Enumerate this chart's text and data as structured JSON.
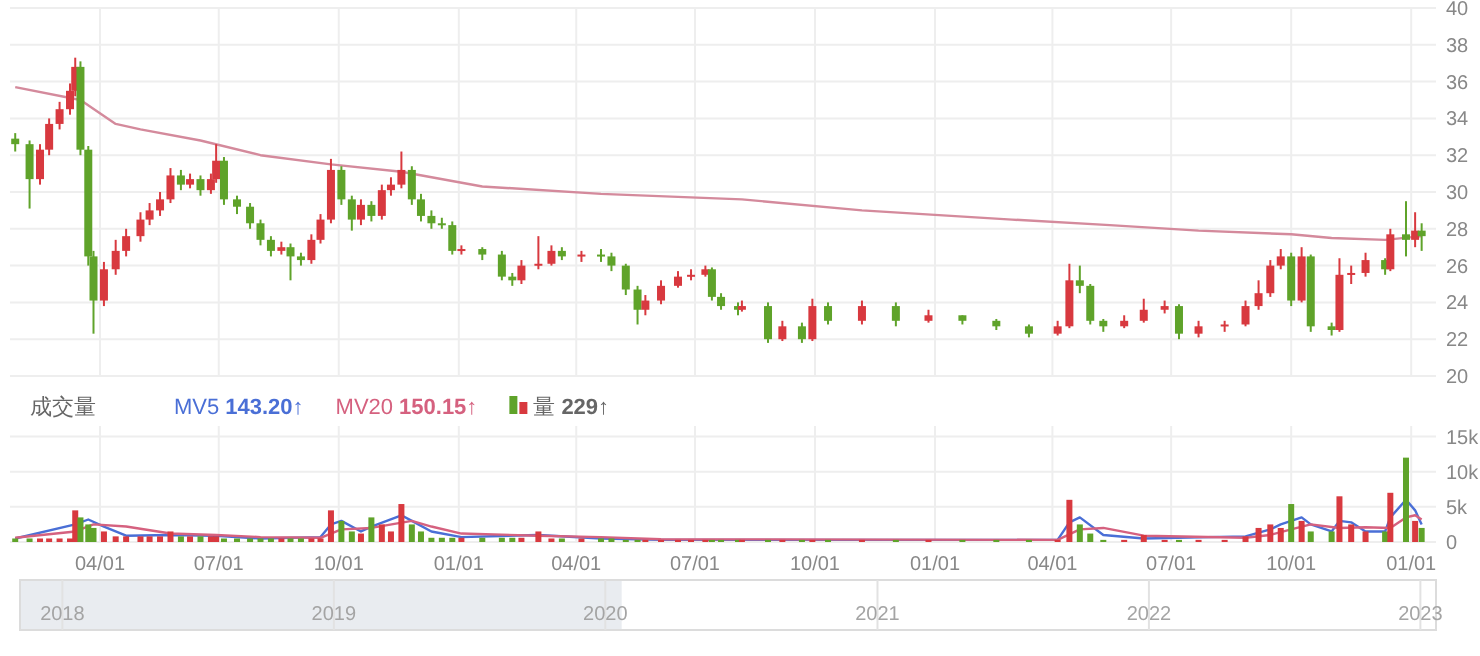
{
  "chart_data": [
    {
      "type": "candlestick",
      "x": [
        "2020-01-27",
        "2020-02-07",
        "2020-02-15",
        "2020-02-22",
        "2020-03-01",
        "2020-03-09",
        "2020-03-13",
        "2020-03-17",
        "2020-03-23",
        "2020-03-27",
        "2020-04-04",
        "2020-04-13",
        "2020-04-21",
        "2020-05-02",
        "2020-05-09",
        "2020-05-17",
        "2020-05-25",
        "2020-06-02",
        "2020-06-09",
        "2020-06-17",
        "2020-06-25",
        "2020-06-29",
        "2020-07-05",
        "2020-07-15",
        "2020-07-25",
        "2020-08-02",
        "2020-08-10",
        "2020-08-18",
        "2020-08-25",
        "2020-09-02",
        "2020-09-10",
        "2020-09-17",
        "2020-09-25",
        "2020-10-03",
        "2020-10-11",
        "2020-10-18",
        "2020-10-26",
        "2020-11-03",
        "2020-11-10",
        "2020-11-18",
        "2020-11-26",
        "2020-12-03",
        "2020-12-11",
        "2020-12-19",
        "2020-12-27",
        "2021-01-03",
        "2021-01-19",
        "2021-02-03",
        "2021-02-11",
        "2021-02-18",
        "2021-03-03",
        "2021-03-13",
        "2021-03-21",
        "2021-04-05",
        "2021-04-20",
        "2021-04-28",
        "2021-05-09",
        "2021-05-18",
        "2021-05-24",
        "2021-06-05",
        "2021-06-18",
        "2021-06-28",
        "2021-07-09",
        "2021-07-14",
        "2021-07-21",
        "2021-08-03",
        "2021-08-06",
        "2021-08-26",
        "2021-09-06",
        "2021-09-21",
        "2021-09-29",
        "2021-10-11",
        "2021-11-06",
        "2021-12-02",
        "2021-12-27",
        "2022-01-22",
        "2022-02-17",
        "2022-03-14",
        "2022-04-05",
        "2022-04-14",
        "2022-04-22",
        "2022-04-30",
        "2022-05-10",
        "2022-05-26",
        "2022-06-10",
        "2022-06-26",
        "2022-07-07",
        "2022-07-22",
        "2022-08-11",
        "2022-08-27",
        "2022-09-06",
        "2022-09-15",
        "2022-09-23",
        "2022-10-01",
        "2022-10-09",
        "2022-10-16",
        "2022-11-01",
        "2022-11-07",
        "2022-11-16",
        "2022-11-27",
        "2022-12-12",
        "2022-12-16",
        "2022-12-28",
        "2023-01-04",
        "2023-01-09"
      ],
      "ohlc": [
        [
          32.9,
          33.2,
          32.2,
          32.6
        ],
        [
          32.6,
          32.8,
          29.1,
          30.7
        ],
        [
          30.7,
          32.6,
          30.4,
          32.3
        ],
        [
          32.3,
          34.0,
          32.0,
          33.7
        ],
        [
          33.7,
          34.9,
          33.4,
          34.5
        ],
        [
          34.5,
          35.9,
          34.2,
          35.5
        ],
        [
          35.5,
          37.3,
          35.2,
          36.8
        ],
        [
          36.8,
          37.1,
          32.0,
          32.3
        ],
        [
          32.3,
          32.5,
          26.0,
          26.5
        ],
        [
          26.5,
          26.8,
          22.3,
          24.1
        ],
        [
          24.1,
          26.2,
          23.8,
          25.8
        ],
        [
          25.8,
          27.4,
          25.5,
          26.8
        ],
        [
          26.8,
          28.0,
          26.5,
          27.6
        ],
        [
          27.6,
          28.9,
          27.3,
          28.5
        ],
        [
          28.5,
          29.4,
          28.2,
          29.0
        ],
        [
          29.0,
          30.0,
          28.7,
          29.6
        ],
        [
          29.6,
          31.3,
          29.4,
          30.9
        ],
        [
          30.9,
          31.2,
          30.1,
          30.4
        ],
        [
          30.4,
          31.0,
          30.2,
          30.7
        ],
        [
          30.7,
          30.9,
          29.8,
          30.1
        ],
        [
          30.1,
          31.0,
          29.9,
          30.7
        ],
        [
          30.7,
          32.6,
          30.5,
          31.7
        ],
        [
          31.7,
          31.9,
          29.3,
          29.6
        ],
        [
          29.6,
          29.8,
          28.8,
          29.2
        ],
        [
          29.2,
          29.4,
          28.0,
          28.3
        ],
        [
          28.3,
          28.5,
          27.1,
          27.4
        ],
        [
          27.4,
          27.6,
          26.5,
          26.8
        ],
        [
          26.8,
          27.3,
          26.6,
          27.0
        ],
        [
          27.0,
          27.2,
          25.2,
          26.5
        ],
        [
          26.5,
          26.7,
          26.0,
          26.3
        ],
        [
          26.3,
          27.7,
          26.1,
          27.4
        ],
        [
          27.4,
          28.8,
          27.2,
          28.5
        ],
        [
          28.5,
          31.8,
          28.3,
          31.2
        ],
        [
          31.2,
          31.4,
          29.3,
          29.6
        ],
        [
          29.6,
          29.8,
          27.9,
          28.5
        ],
        [
          28.5,
          29.6,
          28.2,
          29.3
        ],
        [
          29.3,
          29.5,
          28.4,
          28.7
        ],
        [
          28.7,
          30.4,
          28.5,
          30.1
        ],
        [
          30.1,
          30.8,
          29.8,
          30.4
        ],
        [
          30.4,
          32.2,
          30.2,
          31.2
        ],
        [
          31.2,
          31.4,
          29.3,
          29.6
        ],
        [
          29.6,
          29.9,
          28.4,
          28.7
        ],
        [
          28.7,
          29.0,
          28.0,
          28.3
        ],
        [
          28.3,
          28.6,
          28.0,
          28.2
        ],
        [
          28.2,
          28.4,
          26.6,
          26.8
        ],
        [
          26.8,
          27.1,
          26.6,
          26.9
        ],
        [
          26.9,
          27.0,
          26.3,
          26.6
        ],
        [
          26.6,
          26.8,
          25.2,
          25.4
        ],
        [
          25.4,
          25.6,
          24.9,
          25.2
        ],
        [
          25.2,
          26.3,
          25.0,
          26.0
        ],
        [
          26.0,
          27.6,
          25.8,
          26.1
        ],
        [
          26.1,
          27.1,
          26.0,
          26.8
        ],
        [
          26.8,
          27.0,
          26.3,
          26.5
        ],
        [
          26.5,
          26.8,
          26.2,
          26.6
        ],
        [
          26.6,
          26.9,
          26.2,
          26.5
        ],
        [
          26.5,
          26.7,
          25.7,
          26.0
        ],
        [
          26.0,
          26.1,
          24.4,
          24.7
        ],
        [
          24.7,
          24.9,
          22.8,
          23.6
        ],
        [
          23.6,
          24.4,
          23.3,
          24.1
        ],
        [
          24.1,
          25.2,
          23.9,
          24.9
        ],
        [
          24.9,
          25.7,
          24.8,
          25.4
        ],
        [
          25.4,
          25.8,
          25.2,
          25.5
        ],
        [
          25.5,
          26.0,
          25.4,
          25.8
        ],
        [
          25.8,
          25.9,
          24.1,
          24.3
        ],
        [
          24.3,
          24.5,
          23.6,
          23.8
        ],
        [
          23.8,
          24.0,
          23.3,
          23.6
        ],
        [
          23.6,
          24.1,
          23.5,
          23.8
        ],
        [
          23.8,
          24.0,
          21.8,
          22.0
        ],
        [
          22.0,
          23.0,
          21.9,
          22.7
        ],
        [
          22.7,
          22.9,
          21.8,
          22.0
        ],
        [
          22.0,
          24.2,
          21.9,
          23.8
        ],
        [
          23.8,
          24.0,
          22.8,
          23.0
        ],
        [
          23.0,
          24.1,
          22.8,
          23.8
        ],
        [
          23.8,
          24.0,
          22.7,
          23.0
        ],
        [
          23.0,
          23.6,
          22.9,
          23.3
        ],
        [
          23.3,
          23.3,
          22.8,
          23.0
        ],
        [
          23.0,
          23.1,
          22.5,
          22.7
        ],
        [
          22.7,
          22.8,
          22.1,
          22.3
        ],
        [
          22.3,
          23.0,
          22.2,
          22.7
        ],
        [
          22.7,
          26.1,
          22.6,
          25.2
        ],
        [
          25.2,
          26.0,
          24.5,
          24.9
        ],
        [
          24.9,
          25.0,
          22.8,
          23.0
        ],
        [
          23.0,
          23.1,
          22.4,
          22.7
        ],
        [
          22.7,
          23.3,
          22.6,
          23.0
        ],
        [
          23.0,
          24.2,
          22.9,
          23.6
        ],
        [
          23.6,
          24.1,
          23.4,
          23.8
        ],
        [
          23.8,
          23.9,
          22.0,
          22.3
        ],
        [
          22.3,
          23.0,
          22.1,
          22.7
        ],
        [
          22.7,
          23.0,
          22.4,
          22.8
        ],
        [
          22.8,
          24.1,
          22.7,
          23.8
        ],
        [
          23.8,
          25.2,
          23.6,
          24.5
        ],
        [
          24.5,
          26.3,
          24.3,
          26.0
        ],
        [
          26.0,
          26.9,
          25.8,
          26.5
        ],
        [
          26.5,
          26.7,
          23.8,
          24.1
        ],
        [
          24.1,
          27.0,
          24.0,
          26.5
        ],
        [
          26.5,
          26.6,
          22.4,
          22.7
        ],
        [
          22.7,
          22.9,
          22.2,
          22.5
        ],
        [
          22.5,
          26.4,
          22.4,
          25.5
        ],
        [
          25.5,
          26.0,
          25.0,
          25.6
        ],
        [
          25.6,
          26.7,
          25.4,
          26.3
        ],
        [
          26.3,
          26.4,
          25.5,
          25.8
        ],
        [
          25.8,
          28.0,
          25.7,
          27.7
        ],
        [
          27.7,
          29.5,
          26.5,
          27.4
        ],
        [
          27.4,
          28.9,
          27.0,
          27.9
        ],
        [
          27.9,
          28.3,
          26.8,
          27.6
        ]
      ],
      "colors": [
        "#5fa32a",
        "#5fa32a",
        "#d8393f",
        "#d8393f",
        "#d8393f",
        "#d8393f",
        "#d8393f",
        "#5fa32a",
        "#5fa32a",
        "#5fa32a",
        "#d8393f",
        "#d8393f",
        "#d8393f",
        "#d8393f",
        "#d8393f",
        "#d8393f",
        "#d8393f",
        "#5fa32a",
        "#d8393f",
        "#5fa32a",
        "#d8393f",
        "#d8393f",
        "#5fa32a",
        "#5fa32a",
        "#5fa32a",
        "#5fa32a",
        "#5fa32a",
        "#d8393f",
        "#5fa32a",
        "#5fa32a",
        "#d8393f",
        "#d8393f",
        "#d8393f",
        "#5fa32a",
        "#5fa32a",
        "#d8393f",
        "#5fa32a",
        "#d8393f",
        "#d8393f",
        "#d8393f",
        "#5fa32a",
        "#5fa32a",
        "#5fa32a",
        "#5fa32a",
        "#5fa32a",
        "#d8393f",
        "#5fa32a",
        "#5fa32a",
        "#5fa32a",
        "#d8393f",
        "#d8393f",
        "#d8393f",
        "#5fa32a",
        "#d8393f",
        "#5fa32a",
        "#5fa32a",
        "#5fa32a",
        "#5fa32a",
        "#d8393f",
        "#d8393f",
        "#d8393f",
        "#d8393f",
        "#d8393f",
        "#5fa32a",
        "#5fa32a",
        "#5fa32a",
        "#d8393f",
        "#5fa32a",
        "#d8393f",
        "#5fa32a",
        "#d8393f",
        "#5fa32a",
        "#d8393f",
        "#5fa32a",
        "#d8393f",
        "#5fa32a",
        "#5fa32a",
        "#5fa32a",
        "#d8393f",
        "#d8393f",
        "#5fa32a",
        "#5fa32a",
        "#5fa32a",
        "#d8393f",
        "#d8393f",
        "#d8393f",
        "#5fa32a",
        "#d8393f",
        "#d8393f",
        "#d8393f",
        "#d8393f",
        "#d8393f",
        "#d8393f",
        "#5fa32a",
        "#d8393f",
        "#5fa32a",
        "#5fa32a",
        "#d8393f",
        "#d8393f",
        "#d8393f",
        "#5fa32a",
        "#d8393f",
        "#5fa32a",
        "#d8393f",
        "#5fa32a"
      ],
      "series": [
        {
          "type": "line",
          "color": "#d48a9c",
          "x": [
            "2020-01-27",
            "2020-03-17",
            "2020-04-13",
            "2020-05-02",
            "2020-06-17",
            "2020-08-02",
            "2020-09-25",
            "2020-11-18",
            "2021-01-19",
            "2021-04-20",
            "2021-08-06",
            "2021-11-06",
            "2022-03-01",
            "2022-05-15",
            "2022-07-22",
            "2022-10-01",
            "2022-11-01",
            "2022-12-12",
            "2023-01-09"
          ],
          "values": [
            35.7,
            35.0,
            33.7,
            33.4,
            32.8,
            32.0,
            31.5,
            31.1,
            30.3,
            29.9,
            29.6,
            29.0,
            28.5,
            28.2,
            27.9,
            27.7,
            27.5,
            27.4,
            27.6
          ]
        }
      ],
      "xlim": [
        "2020-01-23",
        "2023-01-20"
      ],
      "ylim": [
        20,
        40
      ],
      "yticks": [
        20,
        22,
        24,
        26,
        28,
        30,
        32,
        34,
        36,
        38,
        40
      ],
      "xticks": [
        {
          "value": "2020-04-01",
          "label": null
        },
        {
          "value": "2020-07-01",
          "label": null
        },
        {
          "value": "2020-10-01",
          "label": null
        },
        {
          "value": "2021-01-01",
          "label": null
        },
        {
          "value": "2021-04-01",
          "label": null
        },
        {
          "value": "2021-07-01",
          "label": null
        },
        {
          "value": "2021-10-01",
          "label": null
        },
        {
          "value": "2022-01-01",
          "label": null
        },
        {
          "value": "2022-04-01",
          "label": null
        },
        {
          "value": "2022-07-01",
          "label": null
        },
        {
          "value": "2022-10-01",
          "label": null
        },
        {
          "value": "2023-01-01",
          "label": null
        }
      ],
      "tick_labels": "y",
      "grid": true
    },
    {
      "type": "bar",
      "title": "成交量",
      "x": [
        "2020-01-27",
        "2020-02-07",
        "2020-02-15",
        "2020-02-22",
        "2020-03-01",
        "2020-03-09",
        "2020-03-13",
        "2020-03-17",
        "2020-03-23",
        "2020-03-27",
        "2020-04-04",
        "2020-04-13",
        "2020-04-21",
        "2020-05-02",
        "2020-05-09",
        "2020-05-17",
        "2020-05-25",
        "2020-06-02",
        "2020-06-09",
        "2020-06-17",
        "2020-06-25",
        "2020-06-29",
        "2020-07-05",
        "2020-07-15",
        "2020-07-25",
        "2020-08-02",
        "2020-08-10",
        "2020-08-18",
        "2020-08-25",
        "2020-09-02",
        "2020-09-10",
        "2020-09-17",
        "2020-09-25",
        "2020-10-03",
        "2020-10-11",
        "2020-10-18",
        "2020-10-26",
        "2020-11-03",
        "2020-11-10",
        "2020-11-18",
        "2020-11-26",
        "2020-12-03",
        "2020-12-11",
        "2020-12-19",
        "2020-12-27",
        "2021-01-03",
        "2021-01-19",
        "2021-02-03",
        "2021-02-11",
        "2021-02-18",
        "2021-03-03",
        "2021-03-13",
        "2021-03-21",
        "2021-04-05",
        "2021-04-20",
        "2021-04-28",
        "2021-05-09",
        "2021-05-18",
        "2021-05-24",
        "2021-06-05",
        "2021-06-18",
        "2021-06-28",
        "2021-07-09",
        "2021-07-14",
        "2021-07-21",
        "2021-08-03",
        "2021-08-06",
        "2021-08-26",
        "2021-09-06",
        "2021-09-21",
        "2021-09-29",
        "2021-10-11",
        "2021-11-06",
        "2021-12-02",
        "2021-12-27",
        "2022-01-22",
        "2022-02-17",
        "2022-03-14",
        "2022-04-05",
        "2022-04-14",
        "2022-04-22",
        "2022-04-30",
        "2022-05-10",
        "2022-05-26",
        "2022-06-10",
        "2022-06-26",
        "2022-07-07",
        "2022-07-22",
        "2022-08-11",
        "2022-08-27",
        "2022-09-06",
        "2022-09-15",
        "2022-09-23",
        "2022-10-01",
        "2022-10-09",
        "2022-10-16",
        "2022-11-01",
        "2022-11-07",
        "2022-11-16",
        "2022-11-27",
        "2022-12-12",
        "2022-12-16",
        "2022-12-28",
        "2023-01-04",
        "2023-01-09"
      ],
      "series": [
        {
          "name": "MV5",
          "type": "line",
          "color": "#4a6fd6",
          "x": [
            "2020-01-27",
            "2020-03-13",
            "2020-03-23",
            "2020-04-04",
            "2020-04-21",
            "2020-05-25",
            "2020-06-29",
            "2020-08-02",
            "2020-09-17",
            "2020-09-25",
            "2020-10-03",
            "2020-10-18",
            "2020-10-26",
            "2020-11-18",
            "2020-11-26",
            "2020-12-11",
            "2021-01-03",
            "2021-03-03",
            "2021-04-20",
            "2021-06-05",
            "2022-04-05",
            "2022-04-14",
            "2022-04-22",
            "2022-05-10",
            "2022-06-10",
            "2022-08-27",
            "2022-09-15",
            "2022-09-23",
            "2022-10-01",
            "2022-10-09",
            "2022-10-16",
            "2022-11-01",
            "2022-11-07",
            "2022-11-16",
            "2022-11-27",
            "2022-12-12",
            "2022-12-16",
            "2022-12-28",
            "2023-01-04",
            "2023-01-09"
          ],
          "values": [
            500,
            2500,
            3200,
            2200,
            900,
            1000,
            900,
            500,
            700,
            2500,
            3000,
            1500,
            2200,
            3800,
            3000,
            1500,
            700,
            1000,
            500,
            300,
            300,
            2800,
            3500,
            1000,
            500,
            800,
            1800,
            2500,
            3000,
            3500,
            2500,
            1500,
            3000,
            2800,
            1500,
            1500,
            3500,
            6000,
            4500,
            2500
          ]
        },
        {
          "name": "MV20",
          "type": "line",
          "color": "#d5617f",
          "x": [
            "2020-01-27",
            "2020-03-13",
            "2020-03-27",
            "2020-04-21",
            "2020-05-25",
            "2020-06-29",
            "2020-08-02",
            "2020-09-17",
            "2020-10-03",
            "2020-10-26",
            "2020-11-26",
            "2020-12-11",
            "2021-01-03",
            "2021-03-03",
            "2021-04-20",
            "2021-06-05",
            "2022-04-05",
            "2022-04-22",
            "2022-05-10",
            "2022-06-10",
            "2022-08-27",
            "2022-09-15",
            "2022-10-01",
            "2022-10-16",
            "2022-11-07",
            "2022-11-27",
            "2022-12-16",
            "2022-12-28",
            "2023-01-04",
            "2023-01-09"
          ],
          "values": [
            600,
            1500,
            2500,
            2200,
            1200,
            1000,
            700,
            600,
            1800,
            2000,
            3000,
            2200,
            1200,
            900,
            700,
            400,
            300,
            1800,
            2000,
            900,
            600,
            1000,
            1800,
            2500,
            2000,
            2100,
            2000,
            3500,
            3800,
            3200
          ]
        },
        {
          "name": "量",
          "type": "bar",
          "values": [
            500,
            500,
            500,
            500,
            500,
            500,
            4500,
            3500,
            2500,
            2000,
            1500,
            800,
            800,
            800,
            800,
            800,
            1500,
            800,
            800,
            800,
            800,
            800,
            500,
            500,
            500,
            500,
            500,
            500,
            500,
            500,
            500,
            500,
            4500,
            3000,
            1500,
            1200,
            3500,
            2500,
            1500,
            5400,
            2500,
            1500,
            600,
            600,
            600,
            600,
            600,
            600,
            600,
            600,
            1500,
            500,
            500,
            500,
            500,
            500,
            300,
            300,
            300,
            300,
            300,
            300,
            300,
            300,
            300,
            300,
            300,
            300,
            300,
            300,
            300,
            300,
            300,
            300,
            300,
            300,
            300,
            300,
            300,
            6000,
            2500,
            1200,
            300,
            300,
            1000,
            300,
            300,
            300,
            300,
            800,
            2000,
            2500,
            2000,
            5400,
            3000,
            1500,
            1500,
            6500,
            2500,
            1500,
            1500,
            7000,
            12000,
            3000,
            2000
          ],
          "colors": [
            "#5fa32a",
            "#5fa32a",
            "#d8393f",
            "#d8393f",
            "#d8393f",
            "#d8393f",
            "#d8393f",
            "#5fa32a",
            "#5fa32a",
            "#5fa32a",
            "#d8393f",
            "#d8393f",
            "#d8393f",
            "#d8393f",
            "#d8393f",
            "#d8393f",
            "#d8393f",
            "#5fa32a",
            "#d8393f",
            "#5fa32a",
            "#d8393f",
            "#d8393f",
            "#5fa32a",
            "#5fa32a",
            "#5fa32a",
            "#5fa32a",
            "#5fa32a",
            "#d8393f",
            "#5fa32a",
            "#5fa32a",
            "#d8393f",
            "#d8393f",
            "#d8393f",
            "#5fa32a",
            "#5fa32a",
            "#d8393f",
            "#5fa32a",
            "#d8393f",
            "#d8393f",
            "#d8393f",
            "#5fa32a",
            "#5fa32a",
            "#5fa32a",
            "#5fa32a",
            "#5fa32a",
            "#d8393f",
            "#5fa32a",
            "#5fa32a",
            "#5fa32a",
            "#d8393f",
            "#d8393f",
            "#d8393f",
            "#5fa32a",
            "#d8393f",
            "#5fa32a",
            "#5fa32a",
            "#5fa32a",
            "#5fa32a",
            "#d8393f",
            "#d8393f",
            "#d8393f",
            "#d8393f",
            "#d8393f",
            "#5fa32a",
            "#5fa32a",
            "#5fa32a",
            "#d8393f",
            "#5fa32a",
            "#d8393f",
            "#5fa32a",
            "#d8393f",
            "#5fa32a",
            "#d8393f",
            "#5fa32a",
            "#d8393f",
            "#5fa32a",
            "#5fa32a",
            "#5fa32a",
            "#d8393f",
            "#d8393f",
            "#5fa32a",
            "#5fa32a",
            "#5fa32a",
            "#d8393f",
            "#d8393f",
            "#d8393f",
            "#5fa32a",
            "#d8393f",
            "#d8393f",
            "#d8393f",
            "#d8393f",
            "#d8393f",
            "#d8393f",
            "#5fa32a",
            "#d8393f",
            "#5fa32a",
            "#5fa32a",
            "#d8393f",
            "#d8393f",
            "#d8393f",
            "#5fa32a",
            "#d8393f",
            "#5fa32a",
            "#d8393f",
            "#5fa32a"
          ]
        }
      ],
      "annotations": [
        "143.20↑",
        "150.15↑",
        "229↑"
      ],
      "legend": "top left",
      "xlim": [
        "2020-01-23",
        "2023-01-20"
      ],
      "ylim": [
        0,
        16500
      ],
      "yticks": [
        0,
        {
          "value": 5000,
          "label": "5k"
        },
        {
          "value": 10000,
          "label": "10k"
        },
        {
          "value": 15000,
          "label": "15k"
        }
      ],
      "xticks": [
        {
          "value": "2020-04-01",
          "label": "04/01"
        },
        {
          "value": "2020-07-01",
          "label": "07/01"
        },
        {
          "value": "2020-10-01",
          "label": "10/01"
        },
        {
          "value": "2021-01-01",
          "label": "01/01"
        },
        {
          "value": "2021-04-01",
          "label": "04/01"
        },
        {
          "value": "2021-07-01",
          "label": "07/01"
        },
        {
          "value": "2021-10-01",
          "label": "10/01"
        },
        {
          "value": "2022-01-01",
          "label": "01/01"
        },
        {
          "value": "2022-04-01",
          "label": "04/01"
        },
        {
          "value": "2022-07-01",
          "label": "07/01"
        },
        {
          "value": "2022-10-01",
          "label": "10/01"
        },
        {
          "value": "2023-01-01",
          "label": "01/01"
        }
      ],
      "grid": true,
      "x2lim": [
        "2017-11-05",
        "2023-01-22"
      ],
      "x2ticks": [
        {
          "value": "2018-01-01",
          "label": "2018"
        },
        {
          "value": "2019-01-01",
          "label": "2019"
        },
        {
          "value": "2020-01-01",
          "label": "2020"
        },
        {
          "value": "2021-01-01",
          "label": "2021"
        },
        {
          "value": "2022-01-01",
          "label": "2022"
        },
        {
          "value": "2023-01-01",
          "label": "2023"
        }
      ]
    }
  ]
}
